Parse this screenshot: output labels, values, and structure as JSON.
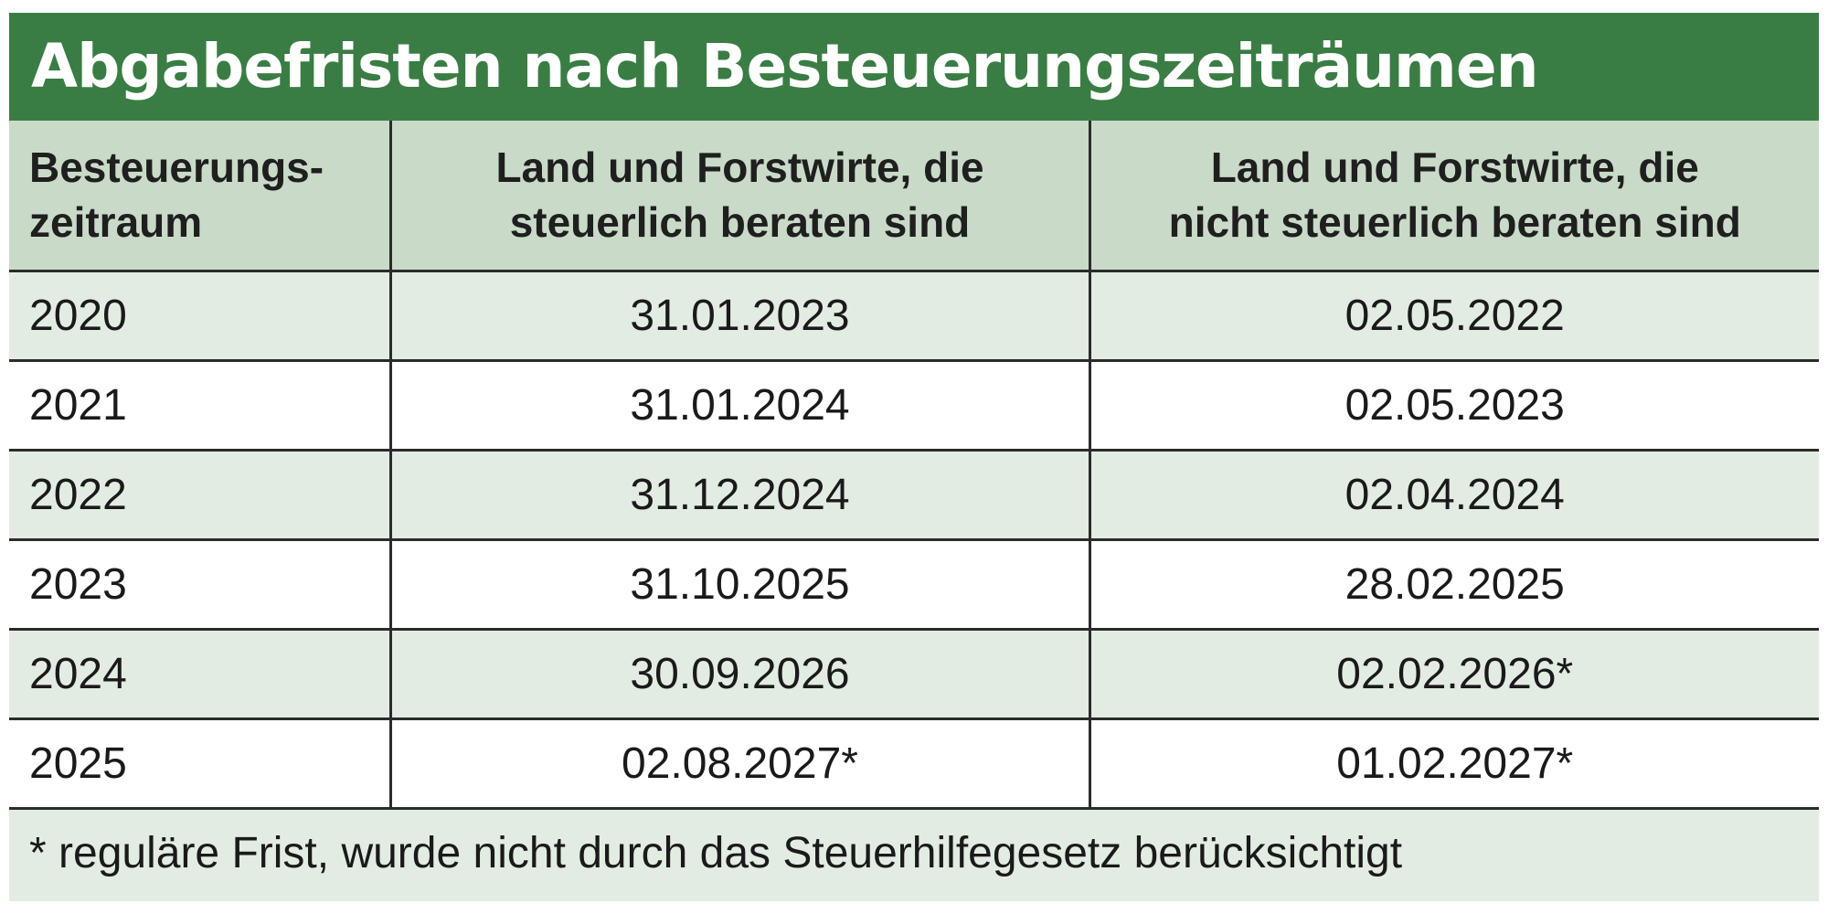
{
  "title": "Abgabefristen nach Besteuerungszeiträumen",
  "table": {
    "headers": [
      {
        "line1": "Besteuerungs-",
        "line2": "zeitraum"
      },
      {
        "line1": "Land und Forstwirte, die",
        "line2": "steuerlich beraten sind"
      },
      {
        "line1": "Land und Forstwirte, die",
        "line2": "nicht steuerlich beraten sind"
      }
    ],
    "rows": [
      {
        "year": "2020",
        "beraten": "31.01.2023",
        "nicht_beraten": "02.05.2022"
      },
      {
        "year": "2021",
        "beraten": "31.01.2024",
        "nicht_beraten": "02.05.2023"
      },
      {
        "year": "2022",
        "beraten": "31.12.2024",
        "nicht_beraten": "02.04.2024"
      },
      {
        "year": "2023",
        "beraten": "31.10.2025",
        "nicht_beraten": "28.02.2025"
      },
      {
        "year": "2024",
        "beraten": "30.09.2026",
        "nicht_beraten": "02.02.2026*"
      },
      {
        "year": "2025",
        "beraten": "02.08.2027*",
        "nicht_beraten": "01.02.2027*"
      }
    ]
  },
  "footnote": "* reguläre Frist, wurde nicht durch das Steuerhilfegesetz berücksichtigt",
  "colors": {
    "title_bg": "#3a7d44",
    "header_bg": "#c9dbc8",
    "row_tint": "#e3ece3",
    "grid": "#2b2b2b"
  }
}
